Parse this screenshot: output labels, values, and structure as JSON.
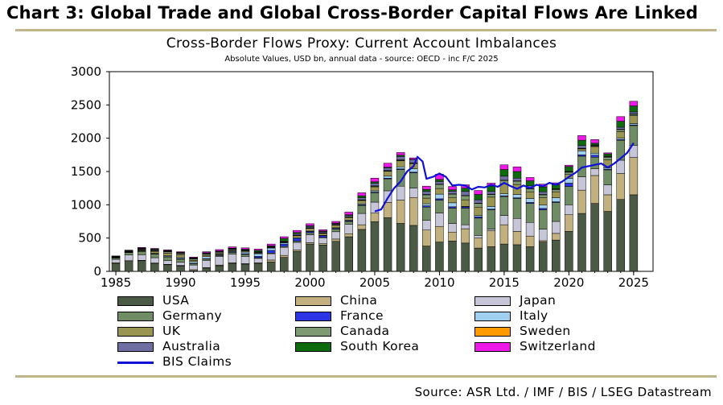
{
  "header": {
    "title": "Chart 3: Global Trade and Global Cross-Border Capital Flows Are Linked",
    "source": "Source: ASR Ltd. / IMF / BIS / LSEG Datastream"
  },
  "colors": {
    "USA": "#4a5a44",
    "China": "#c2b07f",
    "Japan": "#c6c6d8",
    "Germany": "#6f8c64",
    "France": "#2b35e6",
    "Italy": "#9fd0f2",
    "UK": "#9a9550",
    "Canada": "#7e9a72",
    "Sweden": "#ff9a00",
    "Australia": "#6e6ea2",
    "South Korea": "#0d6a0d",
    "Switzerland": "#ee18e8",
    "BIS Claims": "#1010d8",
    "rule": "#bfb58a"
  },
  "chart_data": {
    "type": "bar",
    "stacked": true,
    "title": "Cross-Border Flows Proxy: Current Account Imbalances",
    "subtitle": "Absolute Values, USD bn, annual data  - source: OECD - inc F/C 2025",
    "xlabel": "",
    "ylabel": "",
    "ylim": [
      0,
      3000
    ],
    "yticks": [
      "0",
      "500",
      "1000",
      "1500",
      "2000",
      "2500",
      "3000"
    ],
    "xticks": [
      "1985",
      "1990",
      "1995",
      "2000",
      "2005",
      "2010",
      "2015",
      "2020",
      "2025"
    ],
    "xtick_values": [
      1985,
      1990,
      1995,
      2000,
      2005,
      2010,
      2015,
      2020,
      2025
    ],
    "categories": [
      1985,
      1986,
      1987,
      1988,
      1989,
      1990,
      1991,
      1992,
      1993,
      1994,
      1995,
      1996,
      1997,
      1998,
      1999,
      2000,
      2001,
      2002,
      2003,
      2004,
      2005,
      2006,
      2007,
      2008,
      2009,
      2010,
      2011,
      2012,
      2013,
      2014,
      2015,
      2016,
      2017,
      2018,
      2019,
      2020,
      2021,
      2022,
      2023,
      2024,
      2025
    ],
    "series": [
      {
        "name": "USA",
        "values": [
          120,
          150,
          160,
          120,
          100,
          80,
          10,
          50,
          85,
          120,
          110,
          120,
          140,
          210,
          300,
          410,
          395,
          450,
          520,
          630,
          745,
          805,
          720,
          690,
          380,
          440,
          455,
          425,
          350,
          370,
          410,
          400,
          370,
          440,
          470,
          600,
          870,
          1020,
          900,
          1080,
          1150
        ]
      },
      {
        "name": "China",
        "values": [
          10,
          10,
          5,
          5,
          5,
          10,
          15,
          5,
          10,
          10,
          5,
          10,
          30,
          30,
          20,
          20,
          20,
          35,
          45,
          70,
          130,
          230,
          350,
          420,
          240,
          235,
          135,
          215,
          150,
          240,
          290,
          200,
          160,
          20,
          100,
          250,
          350,
          420,
          250,
          390,
          560
        ]
      },
      {
        "name": "Japan",
        "values": [
          50,
          85,
          85,
          80,
          55,
          45,
          70,
          110,
          130,
          130,
          110,
          65,
          95,
          120,
          115,
          120,
          90,
          110,
          140,
          170,
          165,
          175,
          210,
          140,
          145,
          200,
          130,
          60,
          40,
          25,
          140,
          195,
          205,
          175,
          180,
          150,
          200,
          100,
          150,
          200,
          180
        ]
      },
      {
        "name": "Germany",
        "values": [
          20,
          40,
          50,
          55,
          57,
          48,
          20,
          20,
          15,
          25,
          30,
          10,
          10,
          15,
          20,
          30,
          5,
          40,
          45,
          120,
          140,
          180,
          250,
          230,
          200,
          195,
          230,
          250,
          260,
          290,
          285,
          300,
          285,
          290,
          285,
          275,
          310,
          175,
          225,
          300,
          300
        ]
      },
      {
        "name": "France",
        "values": [
          0,
          2,
          5,
          5,
          5,
          10,
          5,
          5,
          10,
          10,
          10,
          20,
          40,
          35,
          40,
          20,
          25,
          10,
          10,
          10,
          10,
          10,
          10,
          10,
          20,
          20,
          20,
          20,
          20,
          10,
          10,
          10,
          15,
          20,
          10,
          50,
          20,
          30,
          10,
          10,
          10
        ]
      },
      {
        "name": "Italy",
        "values": [
          5,
          5,
          5,
          5,
          12,
          15,
          25,
          30,
          5,
          10,
          25,
          40,
          35,
          20,
          10,
          5,
          5,
          10,
          10,
          15,
          20,
          30,
          30,
          50,
          30,
          70,
          60,
          5,
          20,
          40,
          30,
          50,
          60,
          50,
          60,
          70,
          60,
          30,
          20,
          20,
          20
        ]
      },
      {
        "name": "UK",
        "values": [
          5,
          0,
          10,
          30,
          40,
          40,
          20,
          20,
          15,
          10,
          15,
          10,
          5,
          5,
          30,
          40,
          30,
          40,
          40,
          50,
          60,
          75,
          90,
          80,
          85,
          85,
          80,
          100,
          125,
          140,
          150,
          150,
          100,
          110,
          90,
          60,
          30,
          100,
          120,
          100,
          120
        ]
      },
      {
        "name": "Canada",
        "values": [
          0,
          5,
          10,
          10,
          20,
          20,
          20,
          20,
          20,
          15,
          5,
          5,
          5,
          5,
          5,
          5,
          5,
          5,
          5,
          5,
          10,
          5,
          10,
          5,
          50,
          60,
          50,
          60,
          55,
          40,
          50,
          50,
          45,
          45,
          35,
          35,
          5,
          10,
          40,
          30,
          20
        ]
      },
      {
        "name": "Sweden",
        "values": [
          5,
          5,
          5,
          5,
          5,
          5,
          5,
          5,
          5,
          5,
          5,
          5,
          5,
          5,
          5,
          5,
          5,
          5,
          5,
          5,
          5,
          5,
          5,
          5,
          5,
          5,
          5,
          5,
          5,
          5,
          5,
          5,
          5,
          5,
          5,
          5,
          5,
          5,
          5,
          5,
          5
        ]
      },
      {
        "name": "Australia",
        "values": [
          10,
          10,
          10,
          10,
          10,
          10,
          10,
          10,
          10,
          10,
          10,
          10,
          10,
          10,
          20,
          20,
          15,
          15,
          20,
          30,
          40,
          40,
          50,
          50,
          45,
          40,
          40,
          60,
          50,
          40,
          60,
          40,
          40,
          40,
          5,
          5,
          40,
          10,
          10,
          30,
          30
        ]
      },
      {
        "name": "South Korea",
        "values": [
          2,
          2,
          5,
          10,
          5,
          2,
          5,
          5,
          2,
          3,
          8,
          20,
          10,
          40,
          20,
          10,
          10,
          5,
          10,
          30,
          20,
          10,
          20,
          5,
          30,
          30,
          20,
          50,
          80,
          80,
          100,
          100,
          75,
          75,
          60,
          75,
          80,
          25,
          35,
          90,
          90
        ]
      },
      {
        "name": "Switzerland",
        "values": [
          5,
          5,
          10,
          10,
          10,
          10,
          10,
          15,
          20,
          20,
          20,
          20,
          25,
          25,
          30,
          30,
          20,
          25,
          40,
          45,
          55,
          60,
          40,
          20,
          50,
          80,
          50,
          50,
          60,
          45,
          70,
          70,
          50,
          40,
          30,
          20,
          70,
          55,
          15,
          70,
          70
        ]
      }
    ],
    "lines": [
      {
        "name": "BIS Claims",
        "x": [
          2005,
          2005.5,
          2006,
          2006.5,
          2007,
          2007.5,
          2008,
          2008.3,
          2008.7,
          2009,
          2009.5,
          2010,
          2010.5,
          2011,
          2011.5,
          2012,
          2012.5,
          2013,
          2013.5,
          2014,
          2014.5,
          2015,
          2015.5,
          2016,
          2016.5,
          2017,
          2017.5,
          2018,
          2018.5,
          2019,
          2019.5,
          2020,
          2020.5,
          2021,
          2021.5,
          2022,
          2022.5,
          2023,
          2023.5,
          2024,
          2024.5,
          2025
        ],
        "values": [
          900,
          930,
          1100,
          1250,
          1350,
          1500,
          1580,
          1720,
          1650,
          1390,
          1420,
          1470,
          1420,
          1290,
          1300,
          1290,
          1230,
          1270,
          1260,
          1300,
          1270,
          1330,
          1280,
          1240,
          1290,
          1250,
          1300,
          1280,
          1330,
          1300,
          1350,
          1420,
          1480,
          1560,
          1580,
          1600,
          1620,
          1560,
          1620,
          1700,
          1780,
          1930
        ]
      }
    ],
    "legend_position": "bottom",
    "legend_labels": [
      "USA",
      "China",
      "Japan",
      "Germany",
      "France",
      "Italy",
      "UK",
      "Canada",
      "Sweden",
      "Australia",
      "South Korea",
      "Switzerland",
      "BIS Claims"
    ]
  }
}
